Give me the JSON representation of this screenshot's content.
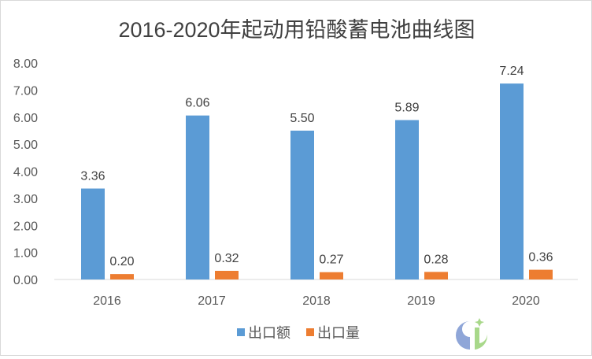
{
  "chart_data": {
    "type": "bar",
    "title": "2016-2020年起动用铅酸蓄电池曲线图",
    "categories": [
      "2016",
      "2017",
      "2018",
      "2019",
      "2020"
    ],
    "series": [
      {
        "name": "出口额",
        "color": "#5B9BD5",
        "values": [
          3.36,
          6.06,
          5.5,
          5.89,
          7.24
        ]
      },
      {
        "name": "出口量",
        "color": "#ED7D31",
        "values": [
          0.2,
          0.32,
          0.27,
          0.28,
          0.36
        ]
      }
    ],
    "yticks": [
      "0.00",
      "1.00",
      "2.00",
      "3.00",
      "4.00",
      "5.00",
      "6.00",
      "7.00",
      "8.00"
    ],
    "ylim": [
      0,
      8
    ],
    "xlabel": "",
    "ylabel": "",
    "grid": false,
    "legend": "bottom",
    "data_labels": true
  }
}
